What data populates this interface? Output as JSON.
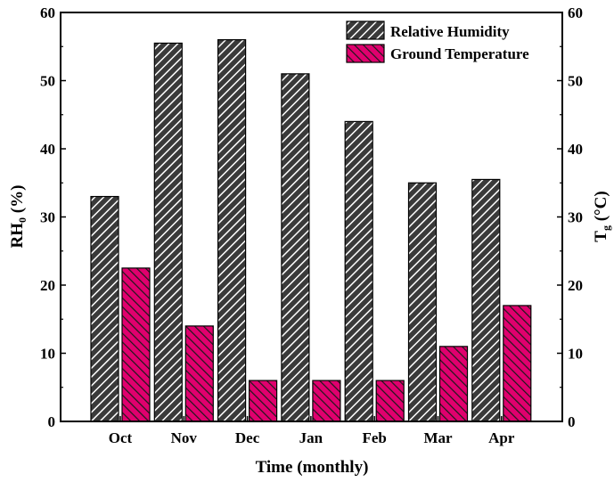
{
  "chart_data": {
    "type": "bar",
    "categories": [
      "Oct",
      "Nov",
      "Dec",
      "Jan",
      "Feb",
      "Mar",
      "Apr"
    ],
    "series": [
      {
        "name": "Relative Humidity",
        "axis": "left",
        "color": "#3a3a3a",
        "values": [
          33,
          55.5,
          56,
          51,
          44,
          35,
          35.5
        ]
      },
      {
        "name": "Ground Temperature",
        "axis": "right",
        "color": "#e0006e",
        "values": [
          22.5,
          14,
          6,
          6,
          6,
          11,
          17
        ]
      }
    ],
    "xlabel": "Time (monthly)",
    "ylabel": {
      "main": "RH",
      "sub": "0",
      "unit": " (%)"
    },
    "y2label": {
      "main": "T",
      "sub": "g",
      "unit": " (°C)"
    },
    "ylim": [
      0,
      60
    ],
    "y2lim": [
      0,
      60
    ],
    "yticks": [
      0,
      10,
      20,
      30,
      40,
      50,
      60
    ],
    "y2ticks": [
      0,
      10,
      20,
      30,
      40,
      50,
      60
    ],
    "grid": false,
    "legend_position": "top-right"
  }
}
